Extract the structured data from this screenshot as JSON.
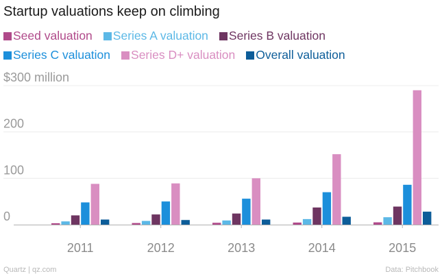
{
  "chart_data": {
    "type": "bar",
    "title": "Startup valuations keep on climbing",
    "categories": [
      "2011",
      "2012",
      "2013",
      "2014",
      "2015"
    ],
    "series": [
      {
        "name": "Seed valuation",
        "color": "#b04a8a",
        "values": [
          3,
          3.5,
          4,
          4.5,
          5
        ]
      },
      {
        "name": "Series A valuation",
        "color": "#5cb8e6",
        "values": [
          7,
          8,
          9,
          12,
          16
        ]
      },
      {
        "name": "Series B valuation",
        "color": "#6e3561",
        "values": [
          20,
          22,
          24,
          37,
          39
        ]
      },
      {
        "name": "Series C valuation",
        "color": "#1c8fdb",
        "values": [
          48,
          50,
          56,
          70,
          86
        ]
      },
      {
        "name": "Series D+ valuation",
        "color": "#d98ec1",
        "values": [
          88,
          89,
          100,
          152,
          290
        ]
      },
      {
        "name": "Overall valuation",
        "color": "#0d5d99",
        "values": [
          11,
          10,
          11,
          17,
          28
        ]
      }
    ],
    "y_ticks": [
      {
        "value": 0,
        "label": "0"
      },
      {
        "value": 100,
        "label": "100"
      },
      {
        "value": 200,
        "label": "200"
      },
      {
        "value": 300,
        "label": "$300 million"
      }
    ],
    "ylim": [
      0,
      300
    ],
    "xlabel": "",
    "ylabel": "",
    "grid": true
  },
  "footer": {
    "credit": "Quartz | qz.com",
    "source": "Data: Pitchbook"
  }
}
